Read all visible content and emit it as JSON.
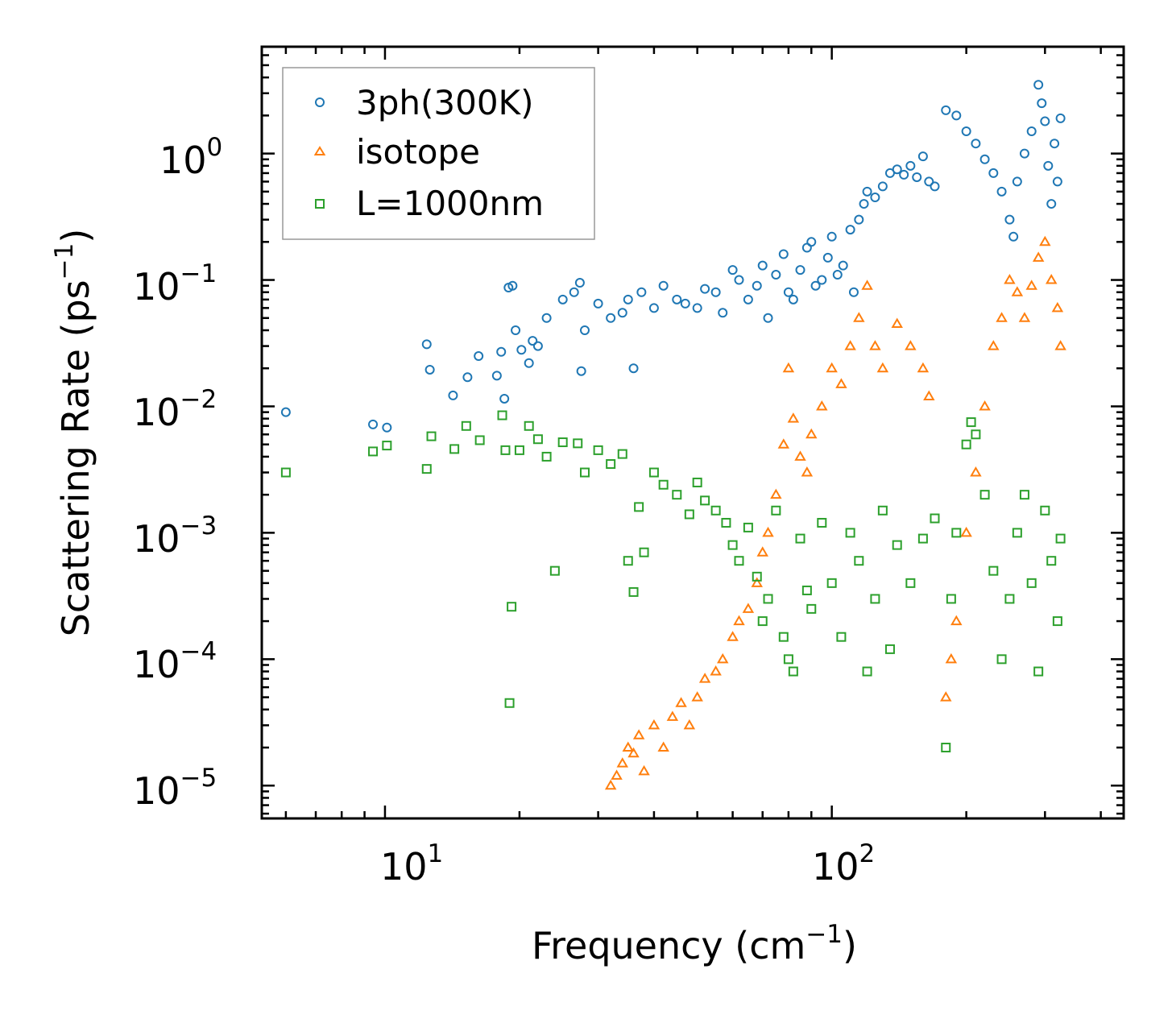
{
  "chart_data": {
    "type": "scatter",
    "title": "",
    "xlabel": "Frequency (cm",
    "xlabel_sup": "−1",
    "xlabel_end": ")",
    "ylabel": "Scattering Rate (ps",
    "ylabel_sup": "−1",
    "ylabel_end": ")",
    "xscale": "log",
    "yscale": "log",
    "xlim": [
      5.3,
      450
    ],
    "ylim": [
      5.5e-06,
      7
    ],
    "grid": false,
    "legend_position": "top-left",
    "x_ticks": [
      {
        "value": 10,
        "base": "10",
        "exp": "1"
      },
      {
        "value": 100,
        "base": "10",
        "exp": "2"
      }
    ],
    "y_ticks": [
      {
        "value": 1,
        "base": "10",
        "exp": "0"
      },
      {
        "value": 0.1,
        "base": "10",
        "exp": "−1"
      },
      {
        "value": 0.01,
        "base": "10",
        "exp": "−2"
      },
      {
        "value": 0.001,
        "base": "10",
        "exp": "−3"
      },
      {
        "value": 0.0001,
        "base": "10",
        "exp": "−4"
      },
      {
        "value": 1e-05,
        "base": "10",
        "exp": "−5"
      }
    ],
    "series": [
      {
        "name": "3ph(300K)",
        "marker": "circle",
        "color": "#1f77b4",
        "points": [
          [
            6.0,
            0.009
          ],
          [
            9.4,
            0.0072
          ],
          [
            10.1,
            0.0068
          ],
          [
            12.4,
            0.031
          ],
          [
            12.6,
            0.0195
          ],
          [
            14.2,
            0.0122
          ],
          [
            15.3,
            0.017
          ],
          [
            16.2,
            0.025
          ],
          [
            17.8,
            0.0175
          ],
          [
            18.2,
            0.027
          ],
          [
            18.5,
            0.0115
          ],
          [
            18.9,
            0.087
          ],
          [
            19.3,
            0.09
          ],
          [
            19.6,
            0.04
          ],
          [
            20.2,
            0.028
          ],
          [
            21.0,
            0.022
          ],
          [
            21.4,
            0.033
          ],
          [
            22.0,
            0.03
          ],
          [
            23.0,
            0.05
          ],
          [
            25.0,
            0.07
          ],
          [
            26.5,
            0.08
          ],
          [
            27.3,
            0.095
          ],
          [
            27.5,
            0.019
          ],
          [
            28.0,
            0.04
          ],
          [
            30.0,
            0.065
          ],
          [
            32.0,
            0.05
          ],
          [
            34.0,
            0.055
          ],
          [
            35.0,
            0.07
          ],
          [
            36.0,
            0.02
          ],
          [
            37.5,
            0.08
          ],
          [
            40.0,
            0.06
          ],
          [
            42.0,
            0.09
          ],
          [
            45.0,
            0.07
          ],
          [
            47.0,
            0.065
          ],
          [
            50.0,
            0.06
          ],
          [
            52.0,
            0.085
          ],
          [
            55.0,
            0.08
          ],
          [
            57.0,
            0.055
          ],
          [
            60.0,
            0.12
          ],
          [
            62.0,
            0.1
          ],
          [
            65.0,
            0.07
          ],
          [
            68.0,
            0.09
          ],
          [
            70.0,
            0.13
          ],
          [
            72.0,
            0.05
          ],
          [
            75.0,
            0.11
          ],
          [
            78.0,
            0.16
          ],
          [
            80.0,
            0.08
          ],
          [
            82.0,
            0.07
          ],
          [
            85.0,
            0.12
          ],
          [
            88.0,
            0.18
          ],
          [
            90.0,
            0.2
          ],
          [
            92.0,
            0.09
          ],
          [
            95.0,
            0.1
          ],
          [
            98.0,
            0.15
          ],
          [
            100.0,
            0.22
          ],
          [
            103.0,
            0.11
          ],
          [
            106.0,
            0.13
          ],
          [
            110.0,
            0.25
          ],
          [
            112.0,
            0.08
          ],
          [
            115.0,
            0.3
          ],
          [
            118.0,
            0.4
          ],
          [
            120.0,
            0.5
          ],
          [
            125.0,
            0.45
          ],
          [
            130.0,
            0.55
          ],
          [
            135.0,
            0.7
          ],
          [
            140.0,
            0.75
          ],
          [
            145.0,
            0.68
          ],
          [
            150.0,
            0.8
          ],
          [
            155.0,
            0.65
          ],
          [
            160.0,
            0.95
          ],
          [
            165.0,
            0.6
          ],
          [
            170.0,
            0.55
          ],
          [
            180.0,
            2.2
          ],
          [
            190.0,
            2.0
          ],
          [
            200.0,
            1.5
          ],
          [
            210.0,
            1.2
          ],
          [
            220.0,
            0.9
          ],
          [
            230.0,
            0.7
          ],
          [
            240.0,
            0.5
          ],
          [
            250.0,
            0.3
          ],
          [
            255.0,
            0.22
          ],
          [
            260.0,
            0.6
          ],
          [
            270.0,
            1.0
          ],
          [
            280.0,
            1.5
          ],
          [
            290.0,
            3.5
          ],
          [
            295.0,
            2.5
          ],
          [
            300.0,
            1.8
          ],
          [
            305.0,
            0.8
          ],
          [
            310.0,
            0.4
          ],
          [
            315.0,
            1.2
          ],
          [
            320.0,
            0.6
          ],
          [
            325.0,
            1.9
          ]
        ]
      },
      {
        "name": "isotope",
        "marker": "triangle",
        "color": "#ff7f0e",
        "points": [
          [
            32.0,
            1e-05
          ],
          [
            33.0,
            1.2e-05
          ],
          [
            34.0,
            1.5e-05
          ],
          [
            35.0,
            2e-05
          ],
          [
            36.0,
            1.8e-05
          ],
          [
            37.0,
            2.5e-05
          ],
          [
            38.0,
            1.3e-05
          ],
          [
            40.0,
            3e-05
          ],
          [
            42.0,
            2e-05
          ],
          [
            44.0,
            3.5e-05
          ],
          [
            46.0,
            4.5e-05
          ],
          [
            48.0,
            3e-05
          ],
          [
            50.0,
            5e-05
          ],
          [
            52.0,
            7e-05
          ],
          [
            55.0,
            8e-05
          ],
          [
            57.0,
            0.0001
          ],
          [
            60.0,
            0.00015
          ],
          [
            62.0,
            0.0002
          ],
          [
            65.0,
            0.00025
          ],
          [
            68.0,
            0.0004
          ],
          [
            70.0,
            0.0007
          ],
          [
            72.0,
            0.001
          ],
          [
            75.0,
            0.002
          ],
          [
            78.0,
            0.005
          ],
          [
            80.0,
            0.02
          ],
          [
            82.0,
            0.008
          ],
          [
            85.0,
            0.004
          ],
          [
            88.0,
            0.003
          ],
          [
            90.0,
            0.006
          ],
          [
            95.0,
            0.01
          ],
          [
            100.0,
            0.02
          ],
          [
            105.0,
            0.015
          ],
          [
            110.0,
            0.03
          ],
          [
            115.0,
            0.05
          ],
          [
            120.0,
            0.09
          ],
          [
            125.0,
            0.03
          ],
          [
            130.0,
            0.02
          ],
          [
            140.0,
            0.045
          ],
          [
            150.0,
            0.03
          ],
          [
            160.0,
            0.02
          ],
          [
            165.0,
            0.012
          ],
          [
            180.0,
            5e-05
          ],
          [
            185.0,
            0.0001
          ],
          [
            190.0,
            0.0002
          ],
          [
            200.0,
            0.001
          ],
          [
            210.0,
            0.003
          ],
          [
            220.0,
            0.01
          ],
          [
            230.0,
            0.03
          ],
          [
            240.0,
            0.05
          ],
          [
            250.0,
            0.1
          ],
          [
            260.0,
            0.08
          ],
          [
            270.0,
            0.05
          ],
          [
            280.0,
            0.09
          ],
          [
            290.0,
            0.15
          ],
          [
            300.0,
            0.2
          ],
          [
            310.0,
            0.1
          ],
          [
            320.0,
            0.06
          ],
          [
            325.0,
            0.03
          ]
        ]
      },
      {
        "name": "L=1000nm",
        "marker": "square",
        "color": "#2ca02c",
        "points": [
          [
            6.0,
            0.003
          ],
          [
            9.4,
            0.0044
          ],
          [
            10.1,
            0.0049
          ],
          [
            12.4,
            0.0032
          ],
          [
            12.7,
            0.0058
          ],
          [
            14.3,
            0.0046
          ],
          [
            15.2,
            0.007
          ],
          [
            16.3,
            0.0054
          ],
          [
            18.3,
            0.0085
          ],
          [
            18.6,
            0.0045
          ],
          [
            19.0,
            4.5e-05
          ],
          [
            19.2,
            0.00026
          ],
          [
            20.0,
            0.0045
          ],
          [
            21.0,
            0.007
          ],
          [
            22.0,
            0.0055
          ],
          [
            23.0,
            0.004
          ],
          [
            24.0,
            0.0005
          ],
          [
            25.0,
            0.0052
          ],
          [
            27.0,
            0.0051
          ],
          [
            28.0,
            0.003
          ],
          [
            30.0,
            0.0045
          ],
          [
            32.0,
            0.0035
          ],
          [
            34.0,
            0.0042
          ],
          [
            35.0,
            0.0006
          ],
          [
            36.0,
            0.00034
          ],
          [
            37.0,
            0.0016
          ],
          [
            38.0,
            0.0007
          ],
          [
            40.0,
            0.003
          ],
          [
            42.0,
            0.0024
          ],
          [
            45.0,
            0.002
          ],
          [
            48.0,
            0.0014
          ],
          [
            50.0,
            0.0025
          ],
          [
            52.0,
            0.0018
          ],
          [
            55.0,
            0.0015
          ],
          [
            58.0,
            0.0012
          ],
          [
            60.0,
            0.0008
          ],
          [
            62.0,
            0.0006
          ],
          [
            65.0,
            0.0011
          ],
          [
            68.0,
            0.00045
          ],
          [
            70.0,
            0.0002
          ],
          [
            72.0,
            0.0003
          ],
          [
            75.0,
            0.0015
          ],
          [
            78.0,
            0.00015
          ],
          [
            80.0,
            0.0001
          ],
          [
            82.0,
            8e-05
          ],
          [
            85.0,
            0.0009
          ],
          [
            88.0,
            0.00035
          ],
          [
            90.0,
            0.00025
          ],
          [
            95.0,
            0.0012
          ],
          [
            100.0,
            0.0004
          ],
          [
            105.0,
            0.00015
          ],
          [
            110.0,
            0.001
          ],
          [
            115.0,
            0.0006
          ],
          [
            120.0,
            8e-05
          ],
          [
            125.0,
            0.0003
          ],
          [
            130.0,
            0.0015
          ],
          [
            135.0,
            0.00012
          ],
          [
            140.0,
            0.0008
          ],
          [
            150.0,
            0.0004
          ],
          [
            160.0,
            0.0009
          ],
          [
            170.0,
            0.0013
          ],
          [
            180.0,
            2e-05
          ],
          [
            185.0,
            0.0003
          ],
          [
            190.0,
            0.001
          ],
          [
            200.0,
            0.005
          ],
          [
            205.0,
            0.0075
          ],
          [
            210.0,
            0.006
          ],
          [
            220.0,
            0.002
          ],
          [
            230.0,
            0.0005
          ],
          [
            240.0,
            0.0001
          ],
          [
            250.0,
            0.0003
          ],
          [
            260.0,
            0.001
          ],
          [
            270.0,
            0.002
          ],
          [
            280.0,
            0.0004
          ],
          [
            290.0,
            8e-05
          ],
          [
            300.0,
            0.0015
          ],
          [
            310.0,
            0.0006
          ],
          [
            320.0,
            0.0002
          ],
          [
            325.0,
            0.0009
          ]
        ]
      }
    ]
  }
}
